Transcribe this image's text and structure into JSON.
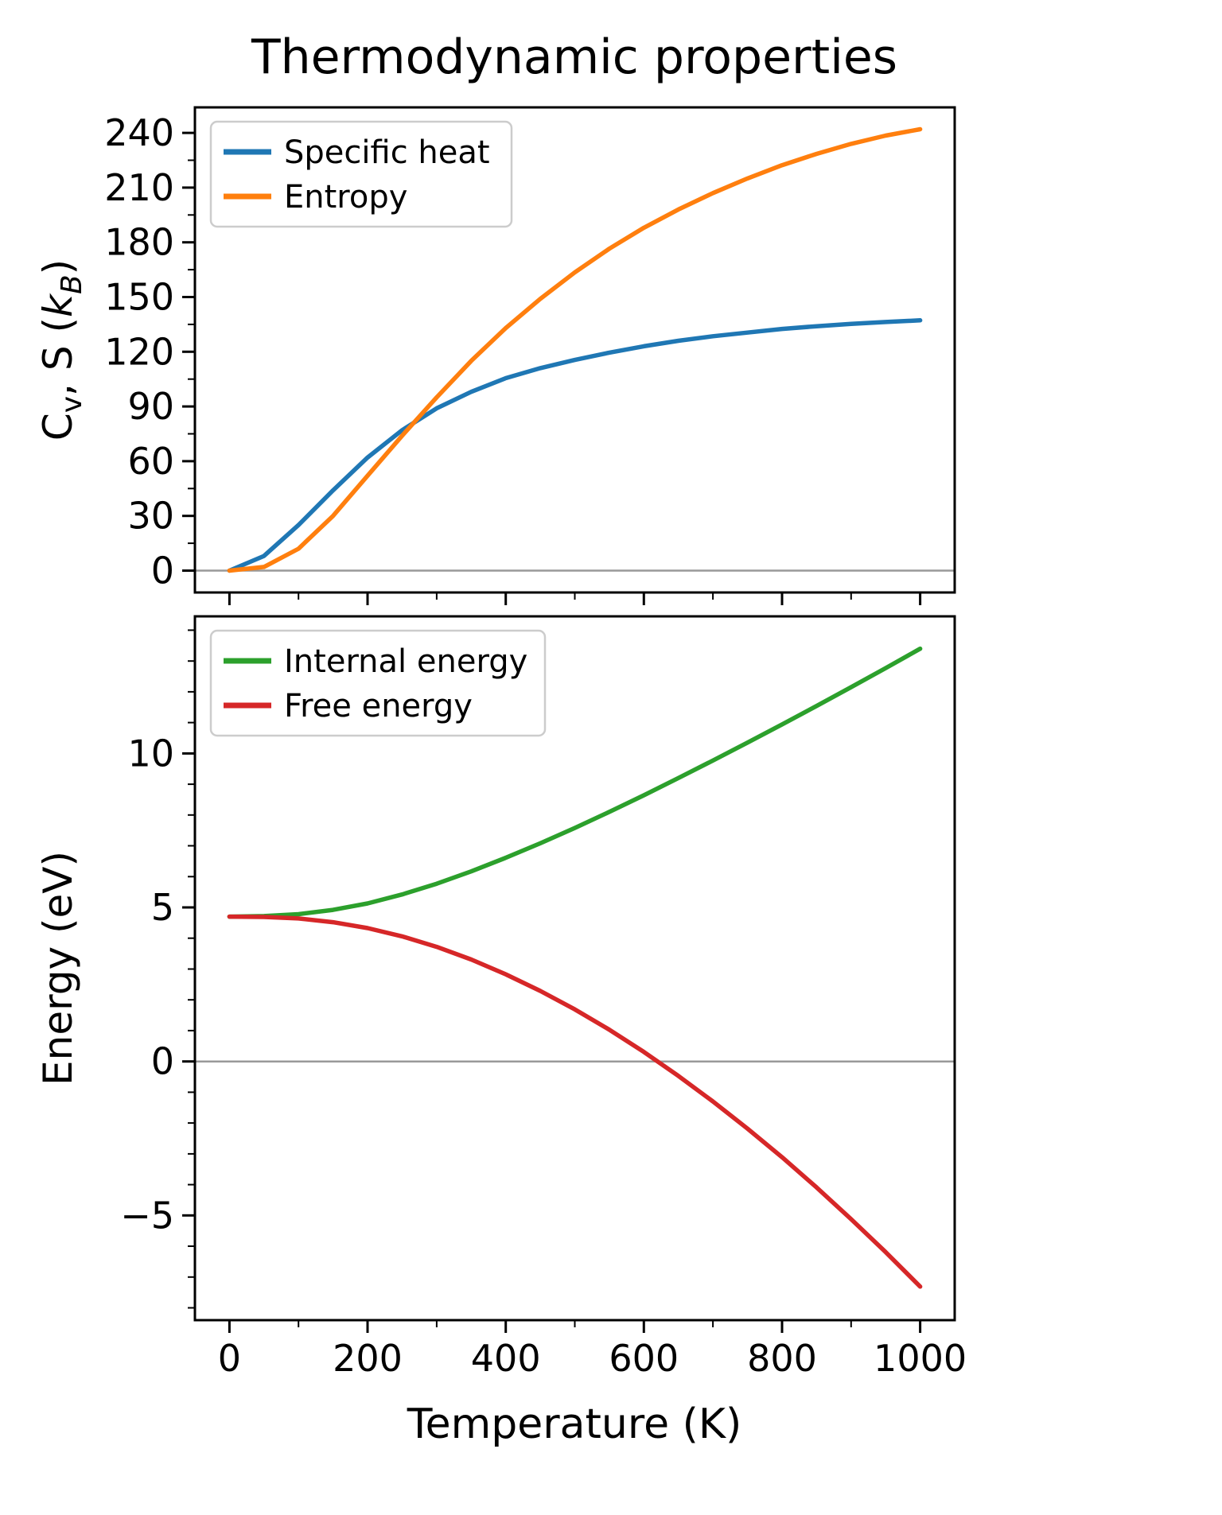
{
  "title": "Thermodynamic properties",
  "xlabel": "Temperature (K)",
  "colors": {
    "specific_heat": "#1f77b4",
    "entropy": "#ff7f0e",
    "internal_energy": "#2ca02c",
    "free_energy": "#d62728",
    "zero_line": "#999999",
    "spine": "#000000",
    "legend_edge": "#cccccc",
    "legend_fill": "#ffffff"
  },
  "chart_data": [
    {
      "type": "line",
      "panel": "top",
      "ylabel": "Cv, S (kB)",
      "ylabel_parts": [
        {
          "t": "C"
        },
        {
          "t": "v",
          "sub": true
        },
        {
          "t": ", S ("
        },
        {
          "t": "k",
          "italic": true
        },
        {
          "t": "B",
          "sub": true,
          "italic": true
        },
        {
          "t": ")"
        }
      ],
      "xlim": [
        -50,
        1050
      ],
      "ylim": [
        -12,
        254
      ],
      "xticks": [
        0,
        200,
        400,
        600,
        800,
        1000
      ],
      "yticks": [
        0,
        30,
        60,
        90,
        120,
        150,
        180,
        210,
        240
      ],
      "x_minor_step": 100,
      "y_minor_step": 15,
      "zero_line": true,
      "legend_position": "upper left",
      "x": [
        0,
        50,
        100,
        150,
        200,
        250,
        300,
        350,
        400,
        450,
        500,
        550,
        600,
        650,
        700,
        750,
        800,
        850,
        900,
        950,
        1000
      ],
      "series": [
        {
          "name": "Specific heat",
          "key": "specific_heat",
          "values": [
            0,
            8,
            25,
            44,
            62,
            77,
            89,
            98,
            105.5,
            111,
            115.5,
            119.5,
            123,
            126,
            128.5,
            130.5,
            132.5,
            134,
            135.3,
            136.3,
            137.2
          ]
        },
        {
          "name": "Entropy",
          "key": "entropy",
          "values": [
            0,
            2,
            12,
            30,
            52,
            74,
            95,
            115,
            133,
            149,
            163.5,
            176.5,
            188,
            198,
            207,
            215,
            222.3,
            228.5,
            234,
            238.5,
            242
          ]
        }
      ]
    },
    {
      "type": "line",
      "panel": "bottom",
      "ylabel": "Energy (eV)",
      "ylabel_parts": [
        {
          "t": "Energy (eV)"
        }
      ],
      "xlim": [
        -50,
        1050
      ],
      "ylim": [
        -8.4,
        14.45
      ],
      "xticks": [
        0,
        200,
        400,
        600,
        800,
        1000
      ],
      "yticks": [
        -5,
        0,
        5,
        10
      ],
      "x_minor_step": 100,
      "y_minor_step": 1,
      "zero_line": true,
      "legend_position": "upper left",
      "x": [
        0,
        50,
        100,
        150,
        200,
        250,
        300,
        350,
        400,
        450,
        500,
        550,
        600,
        650,
        700,
        750,
        800,
        850,
        900,
        950,
        1000
      ],
      "series": [
        {
          "name": "Internal energy",
          "key": "internal_energy",
          "values": [
            4.7,
            4.72,
            4.78,
            4.92,
            5.13,
            5.42,
            5.77,
            6.17,
            6.61,
            7.08,
            7.58,
            8.1,
            8.64,
            9.2,
            9.77,
            10.35,
            10.94,
            11.54,
            12.15,
            12.77,
            13.4
          ]
        },
        {
          "name": "Free energy",
          "key": "free_energy",
          "values": [
            4.7,
            4.69,
            4.64,
            4.52,
            4.33,
            4.06,
            3.72,
            3.31,
            2.83,
            2.29,
            1.69,
            1.03,
            0.31,
            -0.47,
            -1.3,
            -2.18,
            -3.11,
            -4.09,
            -5.12,
            -6.19,
            -7.31
          ]
        }
      ]
    }
  ]
}
